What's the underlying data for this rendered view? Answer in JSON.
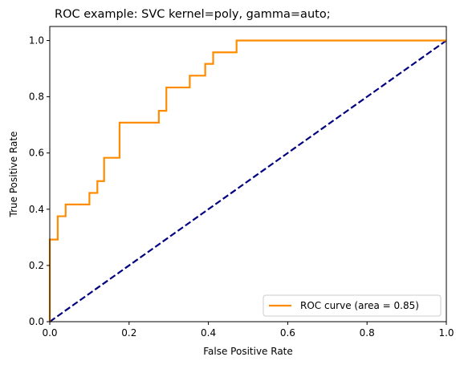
{
  "chart_data": {
    "type": "line",
    "title": "ROC example: SVC kernel=poly, gamma=auto;",
    "xlabel": "False Positive Rate",
    "ylabel": "True Positive Rate",
    "xlim": [
      0.0,
      1.0
    ],
    "ylim": [
      0.0,
      1.05
    ],
    "xticks": [
      0.0,
      0.2,
      0.4,
      0.6,
      0.8,
      1.0
    ],
    "yticks": [
      0.0,
      0.2,
      0.4,
      0.6,
      0.8,
      1.0
    ],
    "xtick_labels": [
      "0.0",
      "0.2",
      "0.4",
      "0.6",
      "0.8",
      "1.0"
    ],
    "ytick_labels": [
      "0.0",
      "0.2",
      "0.4",
      "0.6",
      "0.8",
      "1.0"
    ],
    "grid": false,
    "legend_position": "lower-right",
    "series": [
      {
        "name": "ROC curve (area = 0.85)",
        "color": "#ff8c00",
        "style": "solid",
        "x": [
          0.0,
          0.0,
          0.02,
          0.02,
          0.04,
          0.04,
          0.1,
          0.1,
          0.12,
          0.12,
          0.137,
          0.137,
          0.176,
          0.176,
          0.275,
          0.275,
          0.294,
          0.294,
          0.353,
          0.353,
          0.392,
          0.392,
          0.412,
          0.412,
          0.471,
          0.471,
          1.0
        ],
        "y": [
          0.0,
          0.292,
          0.292,
          0.375,
          0.375,
          0.417,
          0.417,
          0.458,
          0.458,
          0.5,
          0.5,
          0.583,
          0.583,
          0.708,
          0.708,
          0.75,
          0.75,
          0.833,
          0.833,
          0.875,
          0.875,
          0.917,
          0.917,
          0.958,
          0.958,
          1.0,
          1.0
        ]
      },
      {
        "name": "",
        "color": "#000080",
        "style": "dashed",
        "x": [
          0.0,
          1.0
        ],
        "y": [
          0.0,
          1.0
        ]
      }
    ]
  }
}
